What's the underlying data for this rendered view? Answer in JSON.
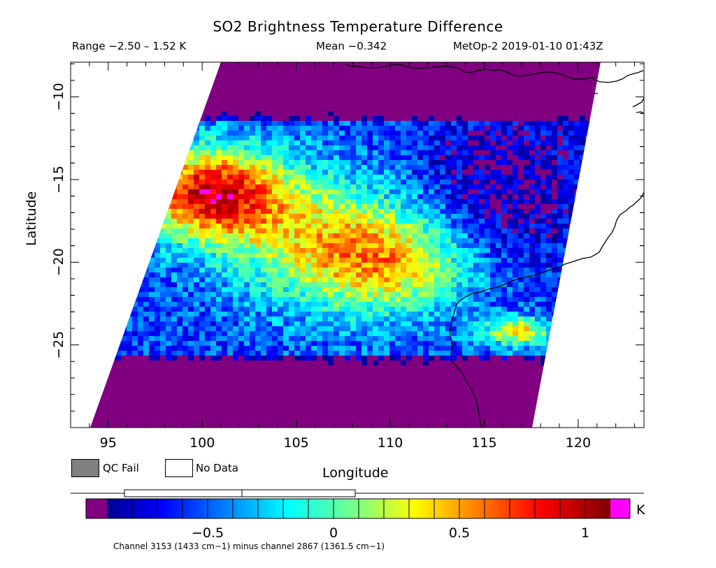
{
  "header": {
    "title": "SO2 Brightness Temperature Difference",
    "range_text": "Range −2.50 – 1.52 K",
    "mean_text": "Mean −0.342",
    "meta_text": "MetOp-2 2019-01-10 01:43Z"
  },
  "legend": {
    "qc_fail_label": "QC Fail",
    "no_data_label": "No Data",
    "qc_fail_color": "#808080",
    "no_data_color": "#ffffff"
  },
  "colorbar": {
    "unit": "K",
    "ticks": [
      -0.5,
      0,
      0.5,
      1
    ],
    "tick_labels": [
      "−0.5",
      "0",
      "0.5",
      "1"
    ],
    "vmin": -0.9,
    "vmax": 1.1,
    "under_color": "#800080",
    "over_color": "#ff00ff",
    "footnote": "Channel 3153 (1433 cm−1) minus channel 2867 (1361.5 cm−1)"
  },
  "chart_data": {
    "type": "heatmap",
    "title": "SO2 Brightness Temperature Difference",
    "xlabel": "Longitude",
    "ylabel": "Latitude",
    "xlim": [
      93,
      123.5
    ],
    "ylim": [
      -30,
      -7.9
    ],
    "x_ticks": [
      95,
      100,
      105,
      110,
      115,
      120
    ],
    "y_ticks": [
      -10,
      -15,
      -20,
      -25
    ],
    "swath_corners_lonlat": [
      [
        101.7,
        -7.9
      ],
      [
        121.5,
        -7.9
      ],
      [
        117.5,
        -30
      ],
      [
        92.5,
        -30
      ]
    ],
    "approx_field": [
      {
        "region": "SW swath (~97-104E, 13-19S)",
        "value": 0.9
      },
      {
        "region": "central swath (~103-112E, 15-23S)",
        "value": 0.3
      },
      {
        "region": "eastern swath (~111-120E, 10-20S)",
        "value": -0.4
      },
      {
        "region": "band (~94-115E, 25-28S)",
        "value": -0.6
      },
      {
        "region": "north and south edges",
        "value": -1.0
      },
      {
        "region": "off W Australia (~115-118E, 24-25S)",
        "value": 0.5
      }
    ],
    "coastline": "Western Australia",
    "grid": false
  }
}
